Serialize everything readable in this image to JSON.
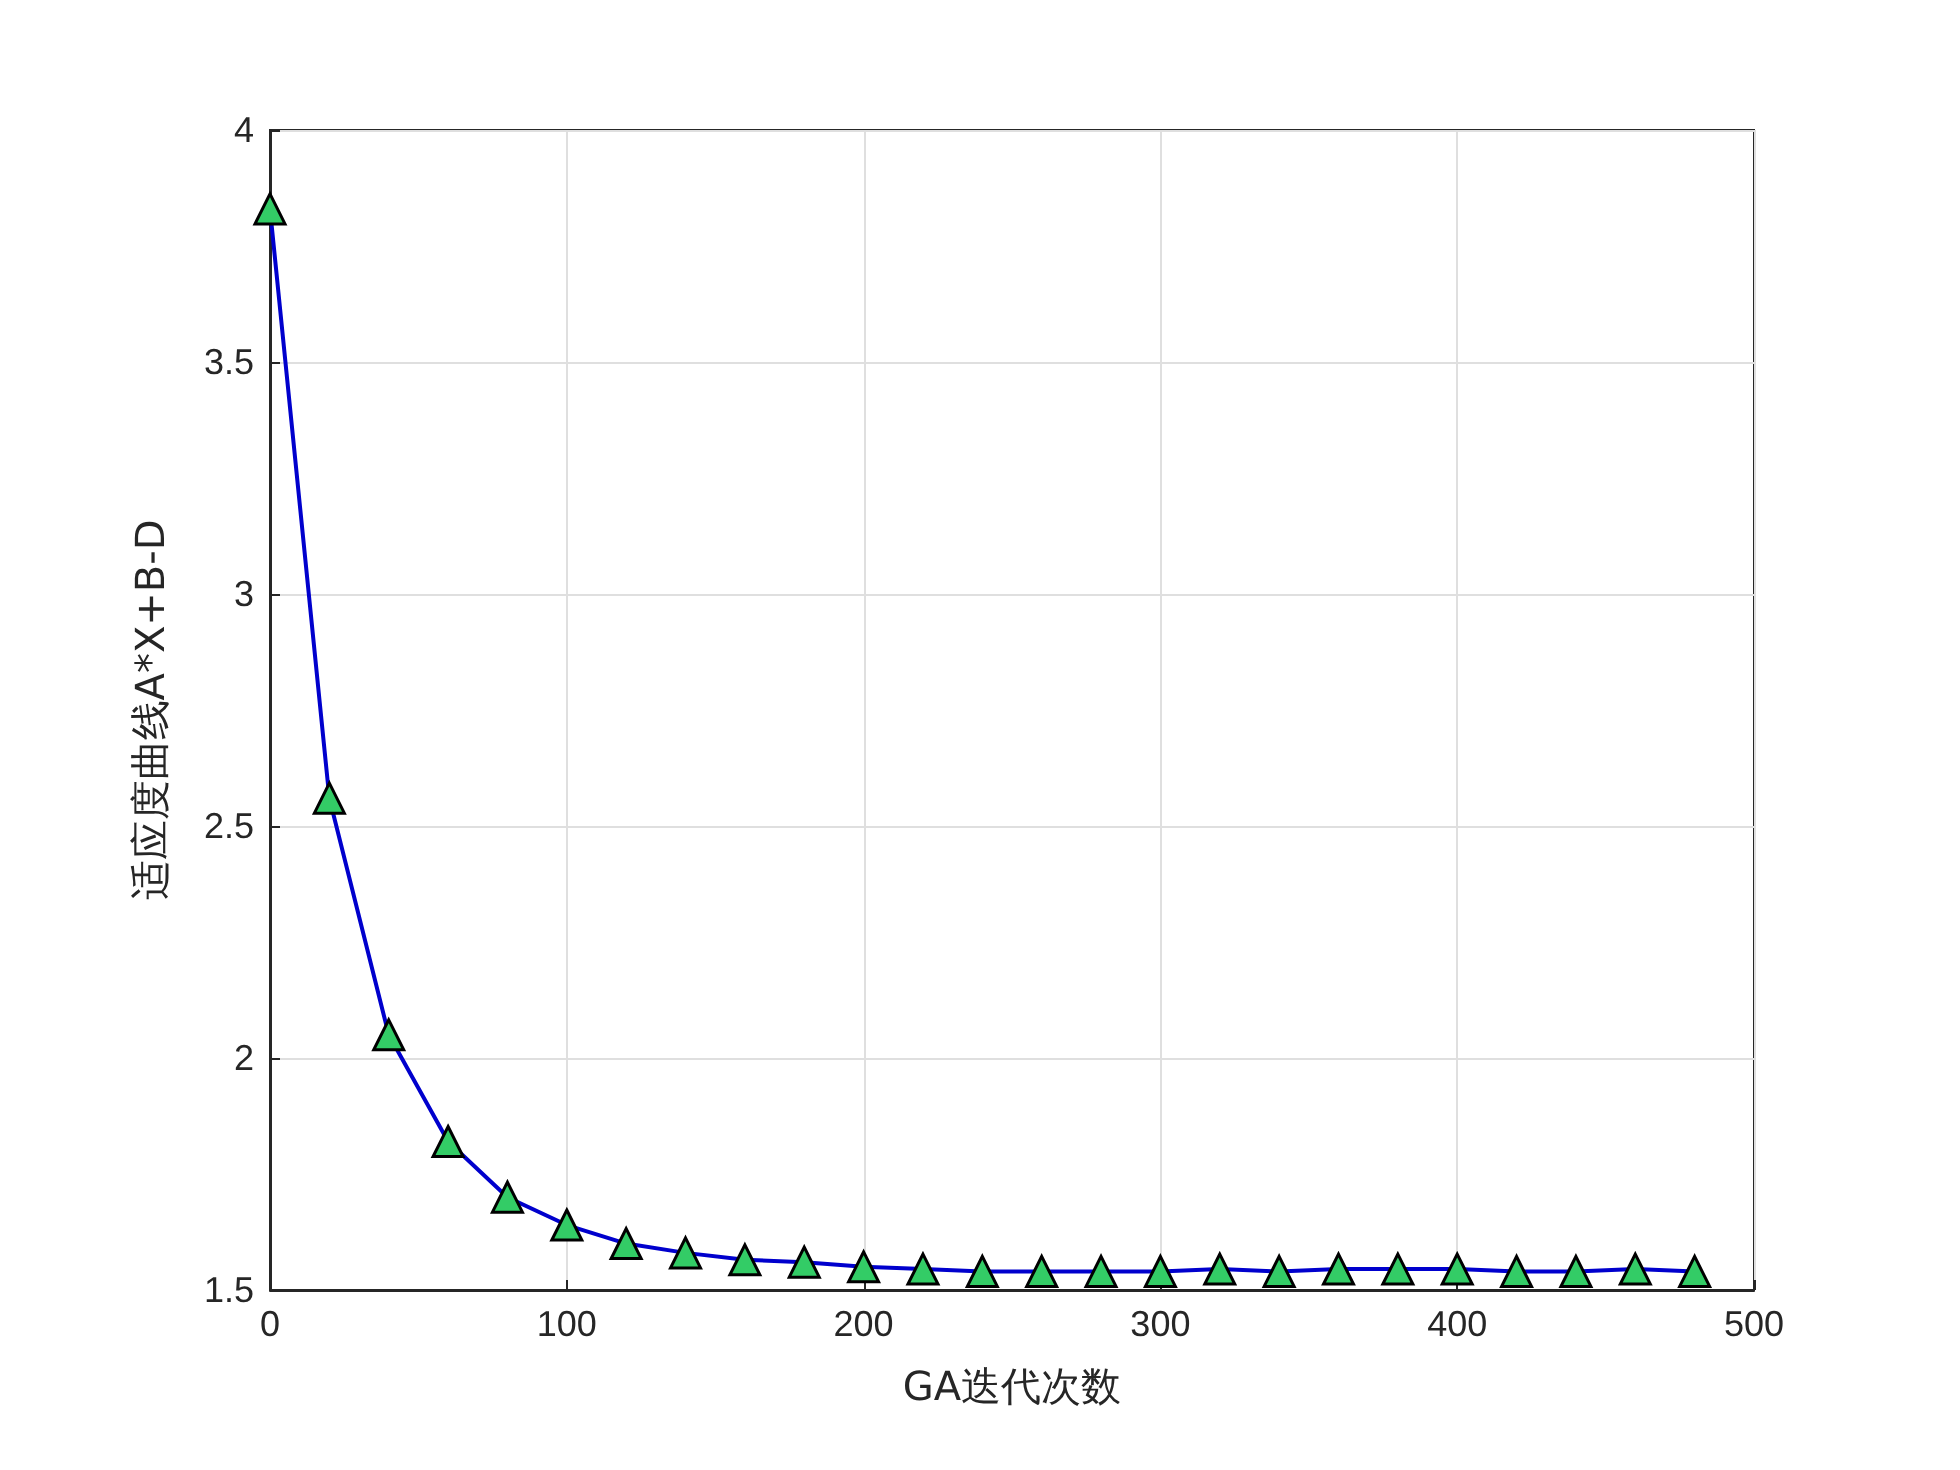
{
  "chart_data": {
    "type": "line",
    "xlabel": "GA迭代次数",
    "ylabel": "适应度曲线A*X+B-D",
    "x": [
      0,
      20,
      40,
      60,
      80,
      100,
      120,
      140,
      160,
      180,
      200,
      220,
      240,
      260,
      280,
      300,
      320,
      340,
      360,
      380,
      400,
      420,
      440,
      460,
      480
    ],
    "series": [
      {
        "color": "#0000cd",
        "values": [
          3.83,
          2.56,
          2.05,
          1.82,
          1.7,
          1.64,
          1.6,
          1.58,
          1.565,
          1.56,
          1.55,
          1.545,
          1.54,
          1.54,
          1.54,
          1.54,
          1.545,
          1.54,
          1.545,
          1.545,
          1.545,
          1.54,
          1.54,
          1.545,
          1.54
        ]
      }
    ],
    "xlim": [
      0,
      500
    ],
    "xticks": [
      0,
      100,
      200,
      300,
      400,
      500
    ],
    "ylim": [
      1.5,
      4
    ],
    "yticks": [
      1.5,
      2,
      2.5,
      3,
      3.5,
      4
    ],
    "grid": true,
    "marker": "triangle",
    "line_style": "solid"
  }
}
